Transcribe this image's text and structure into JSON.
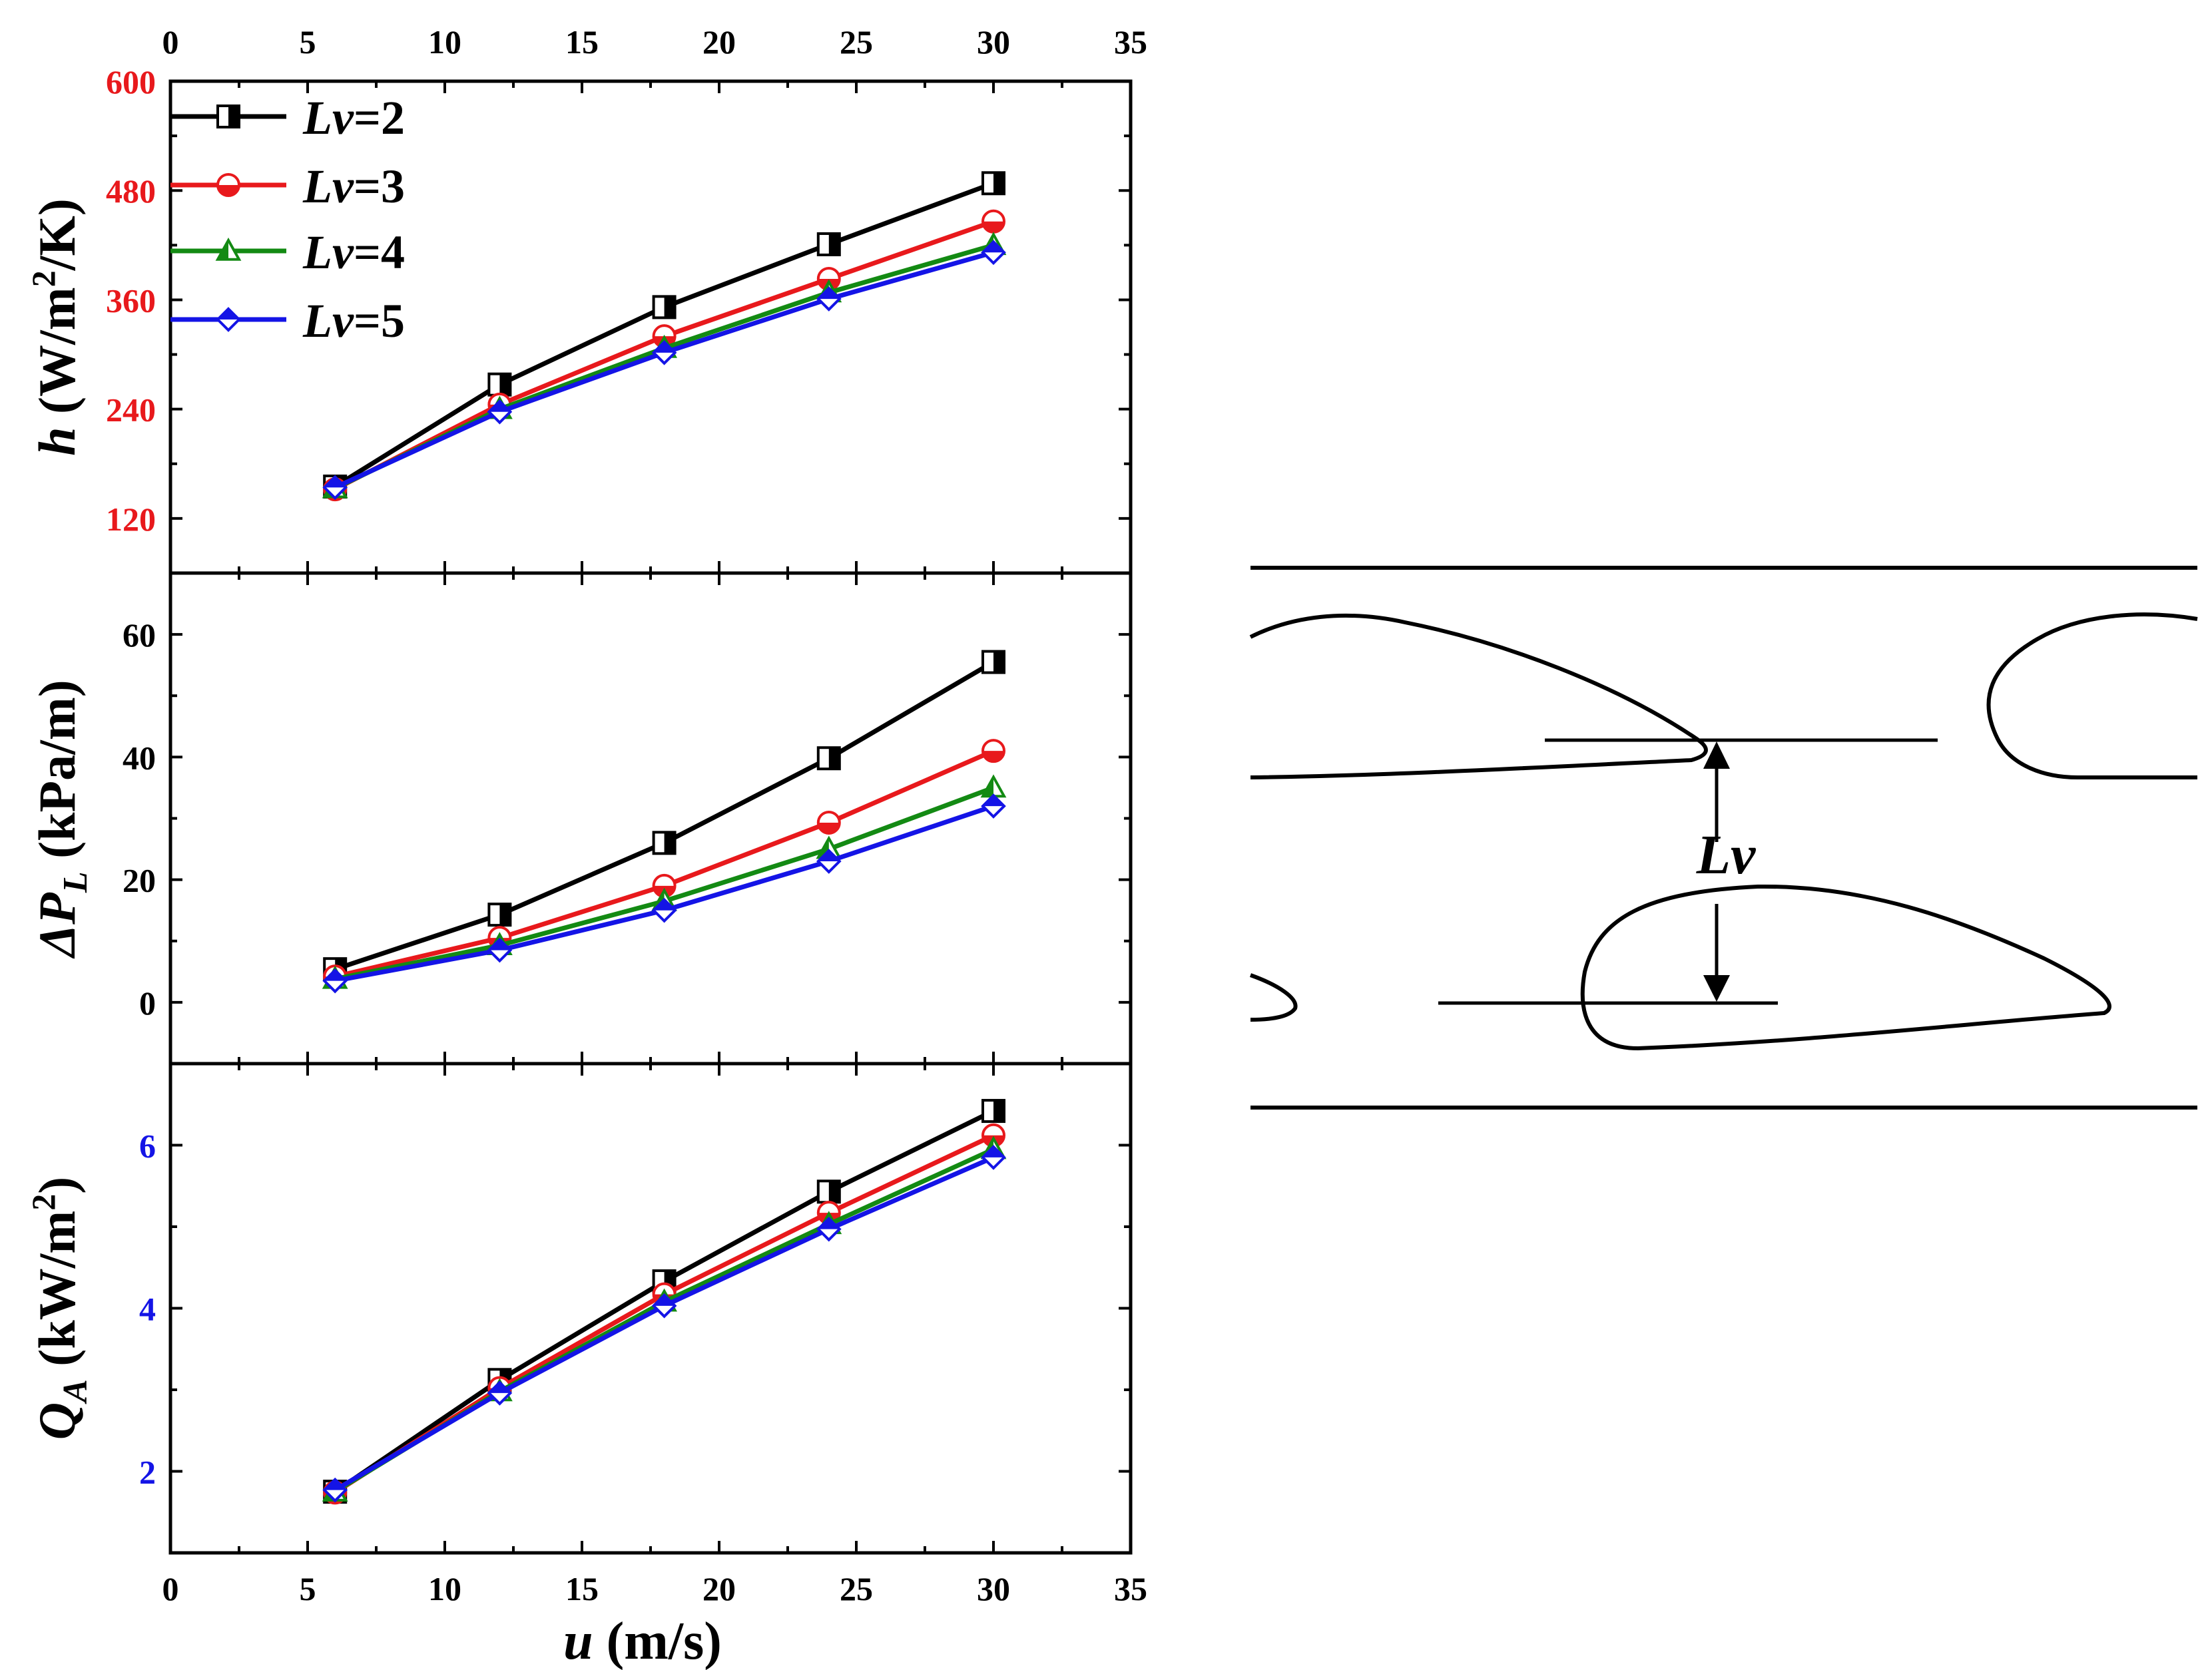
{
  "figure": {
    "x_axis_label_var": "u",
    "x_axis_label_unit": " (m/s)",
    "x_ticks": [
      "0",
      "5",
      "10",
      "15",
      "20",
      "25",
      "30",
      "35"
    ],
    "legend_prefix": "Lv",
    "legend_entries": [
      "=2",
      "=3",
      "=4",
      "=5"
    ],
    "schematic_label": "Lv"
  },
  "chart_data": [
    {
      "type": "line",
      "panel": "top",
      "ylabel_var": "h",
      "ylabel_unit_a": " (W/m",
      "ylabel_sup": "2",
      "ylabel_unit_b": "/K)",
      "ytick_labels": [
        "120",
        "240",
        "360",
        "480",
        "600"
      ],
      "ytick_values": [
        120,
        240,
        360,
        480,
        600
      ],
      "ytick_color": "#e8191c",
      "xlim": [
        0,
        35
      ],
      "ylim": [
        60,
        600
      ],
      "x": [
        6,
        12,
        18,
        24,
        30
      ],
      "series": [
        {
          "name": "Lv=2",
          "color": "#000000",
          "marker": "square-half",
          "values": [
            155,
            267,
            352,
            421,
            488
          ]
        },
        {
          "name": "Lv=3",
          "color": "#e8191c",
          "marker": "circle-half",
          "values": [
            152,
            245,
            320,
            383,
            446
          ]
        },
        {
          "name": "Lv=4",
          "color": "#138a13",
          "marker": "triangle-half",
          "values": [
            153,
            240,
            307,
            368,
            420
          ]
        },
        {
          "name": "Lv=5",
          "color": "#1414e6",
          "marker": "diamond-half",
          "values": [
            154,
            237,
            302,
            361,
            412
          ]
        }
      ]
    },
    {
      "type": "line",
      "panel": "middle",
      "ylabel_var": "ΔP",
      "ylabel_sub": "L",
      "ylabel_unit_a": " (kPa/m)",
      "ytick_labels": [
        "0",
        "20",
        "40",
        "60"
      ],
      "ytick_values": [
        0,
        20,
        40,
        60
      ],
      "ytick_color": "#000000",
      "xlim": [
        0,
        35
      ],
      "ylim": [
        -10,
        70
      ],
      "x": [
        6,
        12,
        18,
        24,
        30
      ],
      "series": [
        {
          "name": "Lv=2",
          "color": "#000000",
          "marker": "square-half",
          "values": [
            5.4,
            14.3,
            26.0,
            39.8,
            55.5
          ]
        },
        {
          "name": "Lv=3",
          "color": "#e8191c",
          "marker": "circle-half",
          "values": [
            4.2,
            10.5,
            19.0,
            29.3,
            41.0
          ]
        },
        {
          "name": "Lv=4",
          "color": "#138a13",
          "marker": "triangle-half",
          "values": [
            3.8,
            9.3,
            16.5,
            25.0,
            35.0
          ]
        },
        {
          "name": "Lv=5",
          "color": "#1414e6",
          "marker": "diamond-half",
          "values": [
            3.5,
            8.5,
            15.0,
            23.0,
            32.0
          ]
        }
      ]
    },
    {
      "type": "line",
      "panel": "bottom",
      "ylabel_var": "Q",
      "ylabel_sub": "A",
      "ylabel_unit_a": " (kW/m",
      "ylabel_sup": "2",
      "ylabel_unit_b": ")",
      "ytick_labels": [
        "2",
        "4",
        "6"
      ],
      "ytick_values": [
        2,
        4,
        6
      ],
      "ytick_color": "#1414e6",
      "xlim": [
        0,
        35
      ],
      "ylim": [
        1,
        7
      ],
      "x": [
        6,
        12,
        18,
        24,
        30
      ],
      "series": [
        {
          "name": "Lv=2",
          "color": "#000000",
          "marker": "square-half",
          "values": [
            1.75,
            3.12,
            4.33,
            5.43,
            6.42
          ]
        },
        {
          "name": "Lv=3",
          "color": "#e8191c",
          "marker": "circle-half",
          "values": [
            1.74,
            3.02,
            4.17,
            5.17,
            6.12
          ]
        },
        {
          "name": "Lv=4",
          "color": "#138a13",
          "marker": "triangle-half",
          "values": [
            1.75,
            2.98,
            4.08,
            5.03,
            5.95
          ]
        },
        {
          "name": "Lv=5",
          "color": "#1414e6",
          "marker": "diamond-half",
          "values": [
            1.77,
            2.96,
            4.03,
            4.97,
            5.85
          ]
        }
      ]
    }
  ]
}
